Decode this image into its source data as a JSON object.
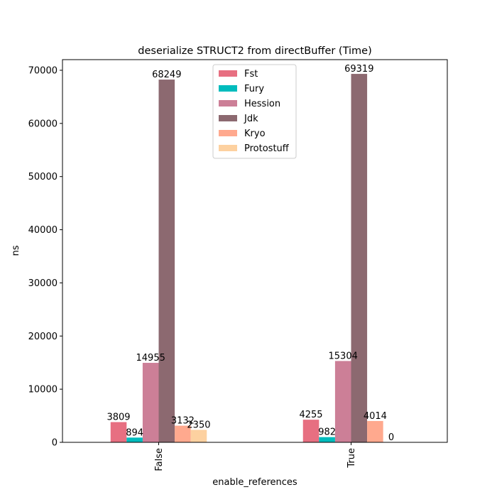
{
  "chart_data": {
    "type": "bar",
    "title": "deserialize STRUCT2 from directBuffer (Time)",
    "xlabel": "enable_references",
    "ylabel": "ns",
    "categories": [
      "False",
      "True"
    ],
    "ylim": [
      0,
      72000
    ],
    "yticks": [
      0,
      10000,
      20000,
      30000,
      40000,
      50000,
      60000,
      70000
    ],
    "grid": false,
    "legend_position": "top-center",
    "series": [
      {
        "name": "Fst",
        "values": [
          3809,
          4255
        ],
        "labels": [
          "3809",
          "4255"
        ],
        "color": "#e76f81"
      },
      {
        "name": "Fury",
        "values": [
          894,
          982
        ],
        "labels": [
          "894",
          "982"
        ],
        "color": "#00bcbd"
      },
      {
        "name": "Hession",
        "values": [
          14955,
          15304
        ],
        "labels": [
          "14955",
          "15304"
        ],
        "color": "#cc7f97"
      },
      {
        "name": "Jdk",
        "values": [
          68249,
          69319
        ],
        "labels": [
          "68249",
          "69319"
        ],
        "color": "#8c6970"
      },
      {
        "name": "Kryo",
        "values": [
          3132,
          4014
        ],
        "labels": [
          "3132",
          "4014"
        ],
        "color": "#ffa98e"
      },
      {
        "name": "Protostuff",
        "values": [
          2350,
          0
        ],
        "labels": [
          "2350",
          "0"
        ],
        "color": "#fdd1a0"
      }
    ]
  }
}
